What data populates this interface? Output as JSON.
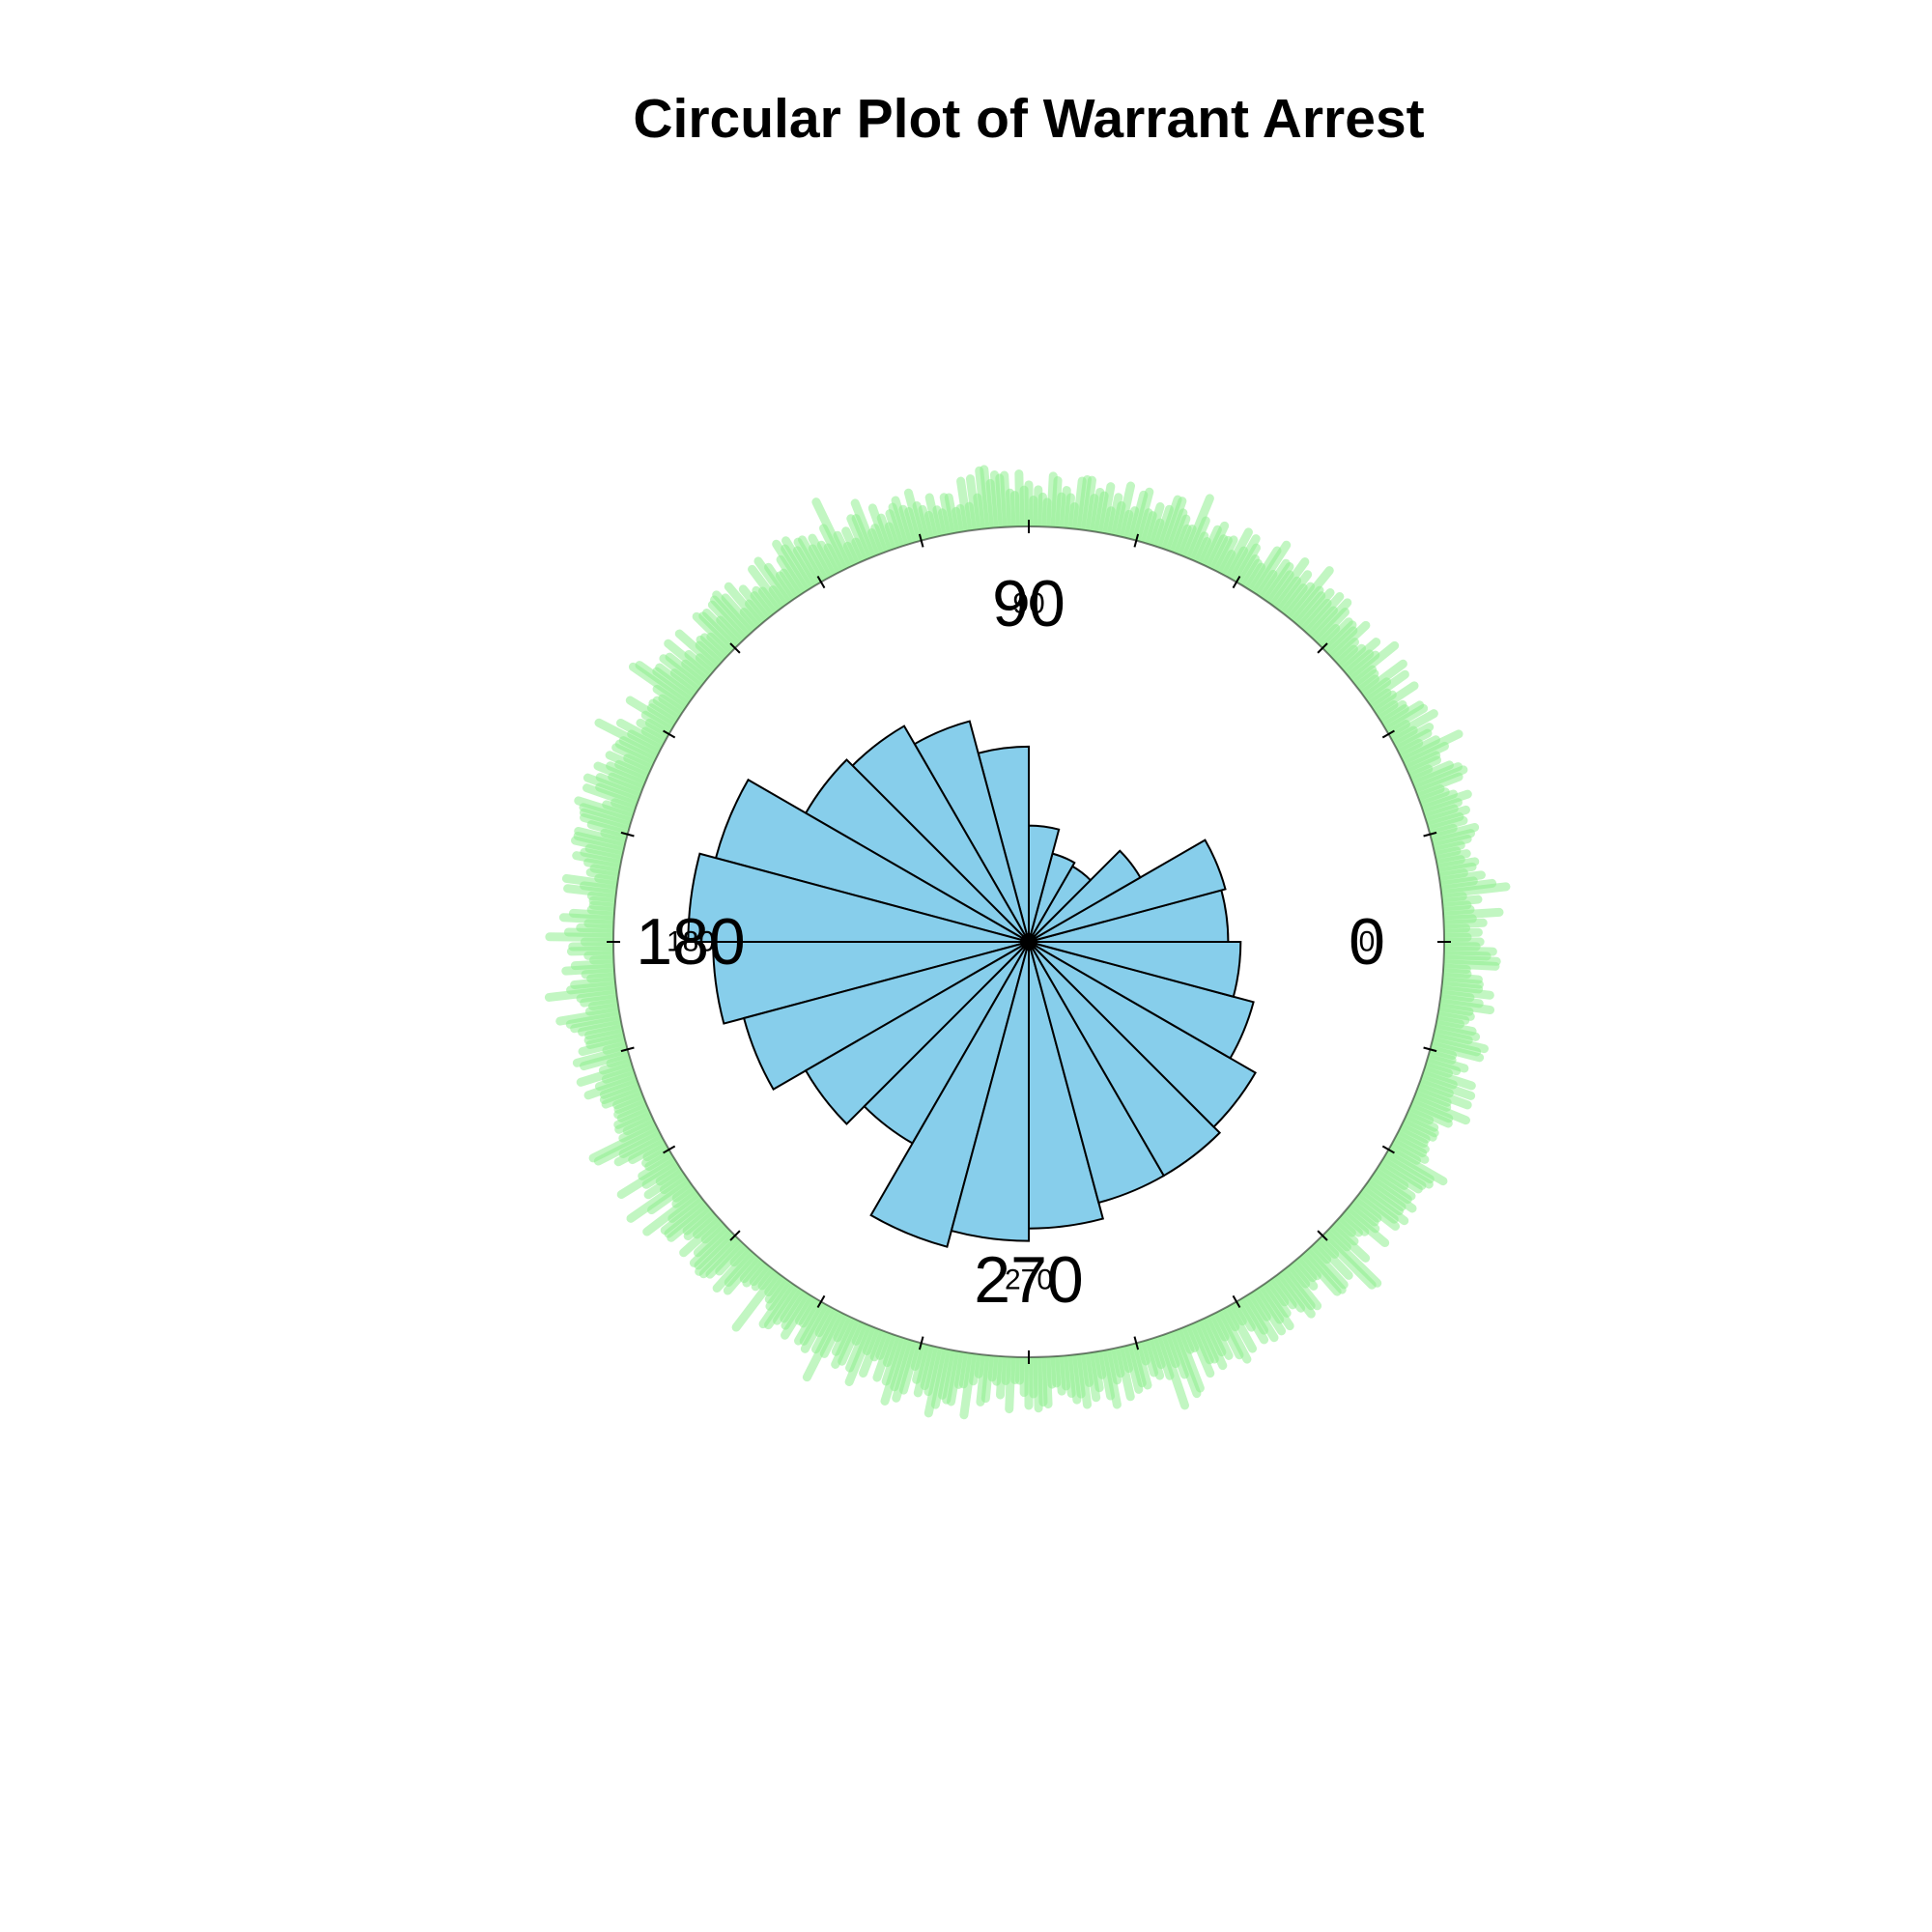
{
  "chart_data": {
    "type": "rose",
    "title": "Circular Plot of Warrant Arrest",
    "angle_labels": [
      {
        "deg": 0,
        "text": "0"
      },
      {
        "deg": 90,
        "text": "90"
      },
      {
        "deg": 180,
        "text": "180"
      },
      {
        "deg": 270,
        "text": "270"
      }
    ],
    "bin_width_deg": 15,
    "bins": [
      {
        "start": 0,
        "end": 15,
        "value": 0.48
      },
      {
        "start": 15,
        "end": 30,
        "value": 0.49
      },
      {
        "start": 30,
        "end": 45,
        "value": 0.31
      },
      {
        "start": 45,
        "end": 60,
        "value": 0.21
      },
      {
        "start": 60,
        "end": 75,
        "value": 0.22
      },
      {
        "start": 75,
        "end": 90,
        "value": 0.28
      },
      {
        "start": 90,
        "end": 105,
        "value": 0.47
      },
      {
        "start": 105,
        "end": 120,
        "value": 0.55
      },
      {
        "start": 120,
        "end": 135,
        "value": 0.6
      },
      {
        "start": 135,
        "end": 150,
        "value": 0.62
      },
      {
        "start": 150,
        "end": 165,
        "value": 0.78
      },
      {
        "start": 165,
        "end": 180,
        "value": 0.82
      },
      {
        "start": 180,
        "end": 195,
        "value": 0.76
      },
      {
        "start": 195,
        "end": 210,
        "value": 0.71
      },
      {
        "start": 210,
        "end": 225,
        "value": 0.62
      },
      {
        "start": 225,
        "end": 240,
        "value": 0.56
      },
      {
        "start": 240,
        "end": 255,
        "value": 0.76
      },
      {
        "start": 255,
        "end": 270,
        "value": 0.72
      },
      {
        "start": 270,
        "end": 285,
        "value": 0.69
      },
      {
        "start": 285,
        "end": 300,
        "value": 0.65
      },
      {
        "start": 300,
        "end": 315,
        "value": 0.65
      },
      {
        "start": 315,
        "end": 330,
        "value": 0.63
      },
      {
        "start": 330,
        "end": 345,
        "value": 0.56
      },
      {
        "start": 345,
        "end": 360,
        "value": 0.51
      }
    ],
    "rlim": [
      0,
      1
    ],
    "tick_interval_deg": 15,
    "points": "dense stacked observations around full circle",
    "colors": {
      "bars": "#87ceeb",
      "bar_outline": "#000000",
      "points": "#90ee90",
      "circle": "#000000"
    }
  }
}
